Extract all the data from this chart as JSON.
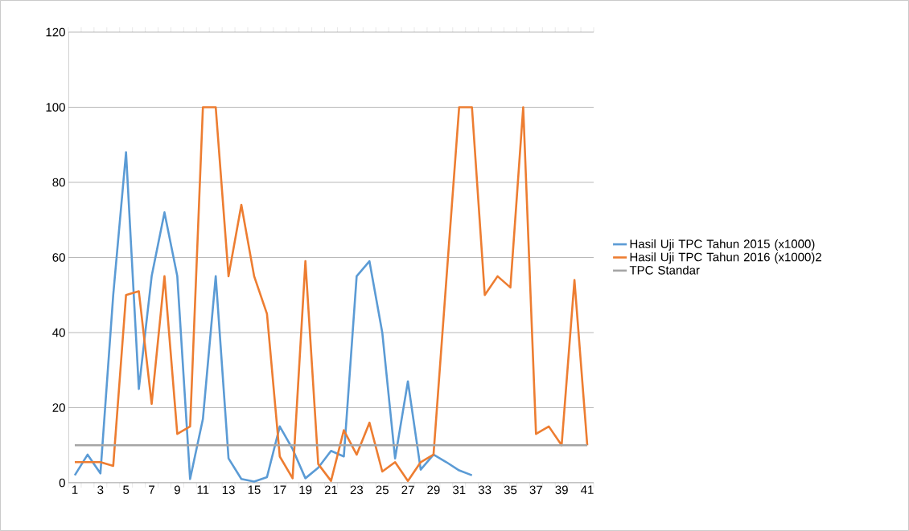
{
  "chart_data": {
    "type": "line",
    "categories": [
      "1",
      null,
      "3",
      null,
      "5",
      null,
      "7",
      null,
      "9",
      null,
      "11",
      null,
      "13",
      null,
      "15",
      null,
      "17",
      null,
      "19",
      null,
      "21",
      null,
      "23",
      null,
      "25",
      null,
      "27",
      null,
      "29",
      null,
      "31",
      null,
      "33",
      null,
      "35",
      null,
      "37",
      null,
      "39",
      null,
      "41"
    ],
    "series": [
      {
        "name": "Hasil Uji TPC Tahun 2015 (x1000)",
        "color": "#5b9bd5",
        "values": [
          2,
          7.5,
          2.5,
          50,
          88,
          25,
          55,
          72,
          55,
          1,
          17,
          55,
          6.5,
          1,
          0.3,
          1.5,
          15,
          9,
          1.2,
          4,
          8.5,
          7,
          55,
          59,
          40,
          6.5,
          27,
          3.5,
          7.5,
          5.5,
          3.3,
          2,
          null,
          null,
          null,
          null,
          null,
          null,
          null,
          null,
          null
        ]
      },
      {
        "name": "Hasil Uji TPC Tahun 2016 (x1000)2",
        "color": "#ed7d31",
        "values": [
          5.5,
          5.5,
          5.5,
          4.5,
          50,
          51,
          21,
          55,
          13,
          15,
          100,
          100,
          55,
          74,
          55,
          45,
          7,
          1.2,
          59,
          5,
          0.5,
          14,
          7.5,
          16,
          3,
          5.5,
          0.5,
          5.5,
          7.5,
          54,
          100,
          100,
          50,
          55,
          52,
          100,
          13,
          15,
          10,
          54,
          10
        ]
      },
      {
        "name": "TPC Standar",
        "color": "#a5a5a5",
        "values": [
          10,
          10,
          10,
          10,
          10,
          10,
          10,
          10,
          10,
          10,
          10,
          10,
          10,
          10,
          10,
          10,
          10,
          10,
          10,
          10,
          10,
          10,
          10,
          10,
          10,
          10,
          10,
          10,
          10,
          10,
          10,
          10,
          10,
          10,
          10,
          10,
          10,
          10,
          10,
          10,
          10
        ]
      }
    ],
    "ylim": [
      0,
      120
    ],
    "yticks": [
      0,
      20,
      40,
      60,
      80,
      100,
      120
    ],
    "grid": "y",
    "legend": "right",
    "marker": "none",
    "line_style": "solid"
  }
}
